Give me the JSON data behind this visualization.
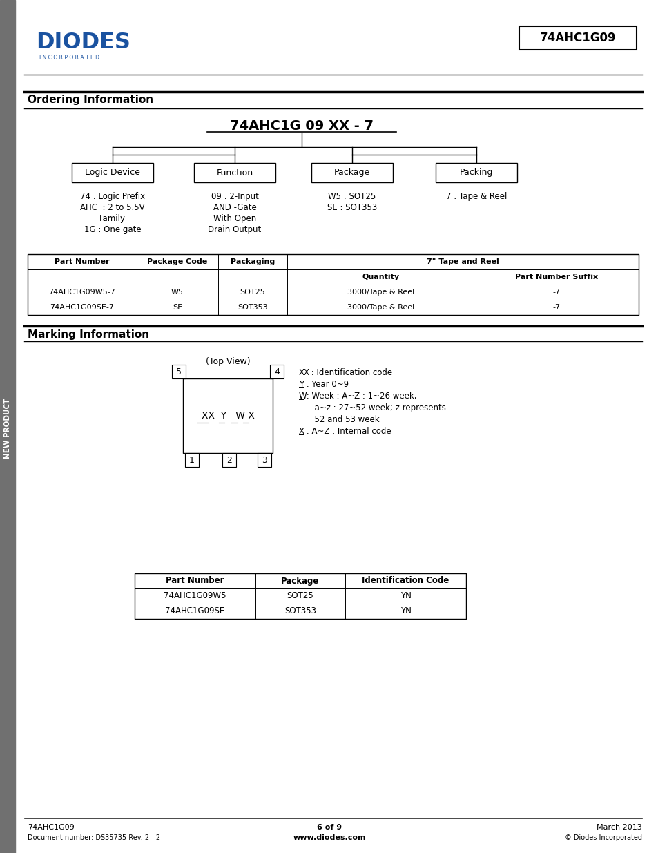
{
  "title_box": "74AHC1G09",
  "section1_title": "Ordering Information",
  "section2_title": "Marking Information",
  "part_number_label": "74AHC1G 09 XX - 7",
  "boxes": [
    "Logic Device",
    "Function",
    "Package",
    "Packing"
  ],
  "order_table_headers1": [
    "Part Number",
    "Package Code",
    "Packaging",
    "7\" Tape and Reel"
  ],
  "order_table_headers2": [
    "Quantity",
    "Part Number Suffix"
  ],
  "order_table_rows": [
    [
      "74AHC1G09W5-7",
      "W5",
      "SOT25",
      "3000/Tape & Reel",
      "-7"
    ],
    [
      "74AHC1G09SE-7",
      "SE",
      "SOT353",
      "3000/Tape & Reel",
      "-7"
    ]
  ],
  "marking_top_view_label": "(Top View)",
  "marking_table_headers": [
    "Part Number",
    "Package",
    "Identification Code"
  ],
  "marking_table_rows": [
    [
      "74AHC1G09W5",
      "SOT25",
      "YN"
    ],
    [
      "74AHC1G09SE",
      "SOT353",
      "YN"
    ]
  ],
  "footer_left1": "74AHC1G09",
  "footer_left2": "Document number: DS35735 Rev. 2 - 2",
  "footer_center1": "6 of 9",
  "footer_center2": "www.diodes.com",
  "footer_right1": "March 2013",
  "footer_right2": "© Diodes Incorporated",
  "sidebar_text": "NEW PRODUCT",
  "bg_color": "#ffffff",
  "text_color": "#000000",
  "blue_color": "#1a52a0",
  "sidebar_color": "#707070"
}
